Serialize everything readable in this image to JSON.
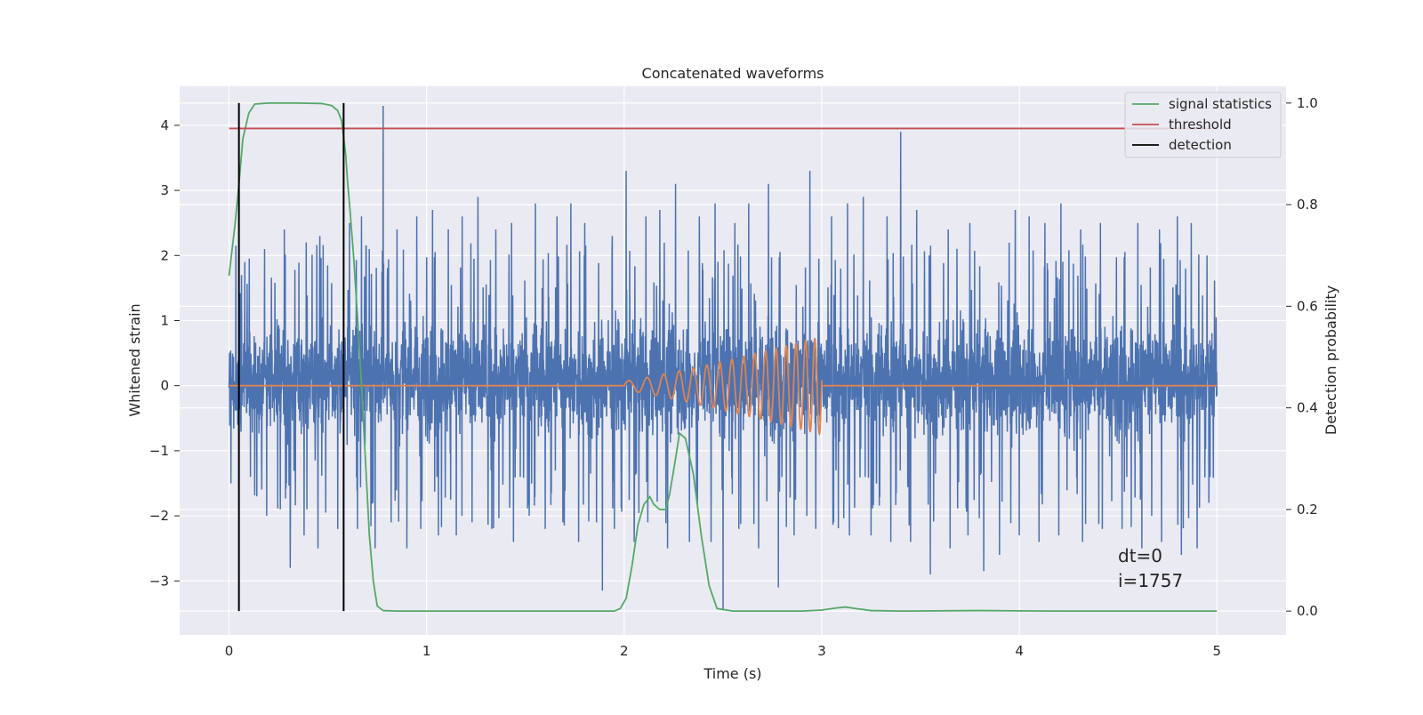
{
  "chart_data": {
    "type": "line",
    "title": "Concatenated waveforms",
    "xlabel": "Time (s)",
    "ylabel": "Whitened strain",
    "y2label": "Detection probability",
    "xlim": [
      -0.25,
      5.35
    ],
    "ylim": [
      -3.83,
      4.6
    ],
    "y2lim": [
      -0.047,
      1.033
    ],
    "x_ticks": [
      0,
      1,
      2,
      3,
      4,
      5
    ],
    "y_ticks": [
      -3,
      -2,
      -1,
      0,
      1,
      2,
      3,
      4
    ],
    "y2_ticks": [
      0.0,
      0.2,
      0.4,
      0.6,
      0.8,
      1.0
    ],
    "x_tick_labels": [
      "0",
      "1",
      "2",
      "3",
      "4",
      "5"
    ],
    "y_tick_labels": [
      "−3",
      "−2",
      "−1",
      "0",
      "1",
      "2",
      "3",
      "4"
    ],
    "y2_tick_labels": [
      "0.0",
      "0.2",
      "0.4",
      "0.6",
      "0.8",
      "1.0"
    ],
    "grid": true,
    "legend_position": "top-right",
    "annotations": [
      "dt=0",
      "i=1757"
    ],
    "series": [
      {
        "name": "",
        "axis": "left",
        "color": "#4c72b0",
        "kind": "noise",
        "x_range": [
          0,
          5
        ],
        "typical_range": [
          -1.0,
          1.2
        ],
        "peaks": [
          [
            0.01,
            2.35
          ],
          [
            0.05,
            2.4
          ],
          [
            0.08,
            1.9
          ],
          [
            0.14,
            2.0
          ],
          [
            0.18,
            2.1
          ],
          [
            0.28,
            2.4
          ],
          [
            0.31,
            3.1
          ],
          [
            0.39,
            2.2
          ],
          [
            0.46,
            2.3
          ],
          [
            0.61,
            2.5
          ],
          [
            0.67,
            2.6
          ],
          [
            0.71,
            2.1
          ],
          [
            0.78,
            4.3
          ],
          [
            0.85,
            2.4
          ],
          [
            0.95,
            2.6
          ],
          [
            1.03,
            2.7
          ],
          [
            1.11,
            2.4
          ],
          [
            1.18,
            2.6
          ],
          [
            1.26,
            2.9
          ],
          [
            1.35,
            2.4
          ],
          [
            1.43,
            2.5
          ],
          [
            1.55,
            2.8
          ],
          [
            1.66,
            2.6
          ],
          [
            1.73,
            2.8
          ],
          [
            1.8,
            2.5
          ],
          [
            1.86,
            2.6
          ],
          [
            1.94,
            2.3
          ],
          [
            2.01,
            3.3
          ],
          [
            2.11,
            2.6
          ],
          [
            2.18,
            2.7
          ],
          [
            2.26,
            3.1
          ],
          [
            2.38,
            2.6
          ],
          [
            2.46,
            2.8
          ],
          [
            2.56,
            2.5
          ],
          [
            2.63,
            2.8
          ],
          [
            2.73,
            3.1
          ],
          [
            2.86,
            3.35
          ],
          [
            2.94,
            3.3
          ],
          [
            3.05,
            2.6
          ],
          [
            3.13,
            2.8
          ],
          [
            3.21,
            2.9
          ],
          [
            3.33,
            2.6
          ],
          [
            3.4,
            3.9
          ],
          [
            3.48,
            2.7
          ],
          [
            3.55,
            2.6
          ],
          [
            3.64,
            2.4
          ],
          [
            3.75,
            2.5
          ],
          [
            3.82,
            3.65
          ],
          [
            3.9,
            2.5
          ],
          [
            3.98,
            2.7
          ],
          [
            4.05,
            2.6
          ],
          [
            4.13,
            2.5
          ],
          [
            4.21,
            2.8
          ],
          [
            4.31,
            2.4
          ],
          [
            4.41,
            2.5
          ],
          [
            4.52,
            2.6
          ],
          [
            4.6,
            2.5
          ],
          [
            4.71,
            2.4
          ],
          [
            4.8,
            2.6
          ],
          [
            4.87,
            2.5
          ],
          [
            4.95,
            2.0
          ]
        ],
        "troughs": [
          [
            0.01,
            -1.5
          ],
          [
            0.05,
            -1.6
          ],
          [
            0.14,
            -1.7
          ],
          [
            0.19,
            -2.0
          ],
          [
            0.26,
            -1.9
          ],
          [
            0.31,
            -2.8
          ],
          [
            0.38,
            -2.3
          ],
          [
            0.45,
            -2.5
          ],
          [
            0.55,
            -2.2
          ],
          [
            0.65,
            -2.2
          ],
          [
            0.74,
            -2.5
          ],
          [
            0.82,
            -2.1
          ],
          [
            0.9,
            -2.5
          ],
          [
            0.97,
            -2.2
          ],
          [
            1.06,
            -2.3
          ],
          [
            1.15,
            -2.3
          ],
          [
            1.23,
            -2.1
          ],
          [
            1.33,
            -2.2
          ],
          [
            1.44,
            -2.4
          ],
          [
            1.52,
            -2.0
          ],
          [
            1.6,
            -2.2
          ],
          [
            1.69,
            -2.1
          ],
          [
            1.77,
            -2.4
          ],
          [
            1.86,
            -2.1
          ],
          [
            1.89,
            -3.15
          ],
          [
            1.95,
            -2.2
          ],
          [
            2.05,
            -2.4
          ],
          [
            2.12,
            -2.1
          ],
          [
            2.22,
            -2.5
          ],
          [
            2.33,
            -2.4
          ],
          [
            2.44,
            -2.4
          ],
          [
            2.5,
            -3.45
          ],
          [
            2.58,
            -2.2
          ],
          [
            2.68,
            -2.5
          ],
          [
            2.78,
            -3.1
          ],
          [
            2.86,
            -2.3
          ],
          [
            2.97,
            -2.2
          ],
          [
            3.06,
            -2.1
          ],
          [
            3.14,
            -2.3
          ],
          [
            3.25,
            -2.3
          ],
          [
            3.35,
            -2.4
          ],
          [
            3.45,
            -2.4
          ],
          [
            3.55,
            -2.9
          ],
          [
            3.65,
            -2.5
          ],
          [
            3.74,
            -2.3
          ],
          [
            3.82,
            -2.85
          ],
          [
            3.9,
            -2.6
          ],
          [
            4.0,
            -2.3
          ],
          [
            4.1,
            -2.4
          ],
          [
            4.2,
            -2.3
          ],
          [
            4.32,
            -2.4
          ],
          [
            4.42,
            -2.2
          ],
          [
            4.52,
            -2.2
          ],
          [
            4.62,
            -2.5
          ],
          [
            4.72,
            -2.4
          ],
          [
            4.82,
            -2.6
          ],
          [
            4.9,
            -2.5
          ],
          [
            4.96,
            -1.8
          ]
        ]
      },
      {
        "name": "",
        "axis": "left",
        "color": "#dd8452",
        "kind": "chirp",
        "x_range": [
          0,
          5
        ],
        "chirp_start": 2.0,
        "chirp_end": 3.0,
        "start_amplitude": 0.07,
        "end_amplitude": 0.75,
        "start_frequency": 10,
        "end_frequency": 22
      },
      {
        "name": "signal statistics",
        "axis": "right",
        "color": "#55a868",
        "points": [
          [
            0.0,
            0.66
          ],
          [
            0.03,
            0.76
          ],
          [
            0.05,
            0.84
          ],
          [
            0.07,
            0.93
          ],
          [
            0.1,
            0.98
          ],
          [
            0.13,
            0.998
          ],
          [
            0.2,
            1.0
          ],
          [
            0.35,
            1.0
          ],
          [
            0.47,
            0.999
          ],
          [
            0.52,
            0.995
          ],
          [
            0.55,
            0.985
          ],
          [
            0.57,
            0.965
          ],
          [
            0.59,
            0.9
          ],
          [
            0.6,
            0.845
          ],
          [
            0.61,
            0.8
          ],
          [
            0.63,
            0.7
          ],
          [
            0.65,
            0.58
          ],
          [
            0.67,
            0.45
          ],
          [
            0.69,
            0.3
          ],
          [
            0.71,
            0.15
          ],
          [
            0.73,
            0.06
          ],
          [
            0.75,
            0.01
          ],
          [
            0.78,
            0.001
          ],
          [
            0.85,
            0.0
          ],
          [
            1.5,
            0.0
          ],
          [
            1.95,
            0.0
          ],
          [
            1.98,
            0.005
          ],
          [
            2.01,
            0.025
          ],
          [
            2.04,
            0.09
          ],
          [
            2.07,
            0.17
          ],
          [
            2.1,
            0.21
          ],
          [
            2.13,
            0.225
          ],
          [
            2.15,
            0.21
          ],
          [
            2.18,
            0.2
          ],
          [
            2.21,
            0.2
          ],
          [
            2.23,
            0.23
          ],
          [
            2.26,
            0.3
          ],
          [
            2.28,
            0.35
          ],
          [
            2.31,
            0.34
          ],
          [
            2.35,
            0.27
          ],
          [
            2.39,
            0.15
          ],
          [
            2.43,
            0.05
          ],
          [
            2.47,
            0.005
          ],
          [
            2.55,
            0.0
          ],
          [
            2.9,
            0.0
          ],
          [
            3.0,
            0.002
          ],
          [
            3.07,
            0.006
          ],
          [
            3.12,
            0.008
          ],
          [
            3.17,
            0.005
          ],
          [
            3.25,
            0.001
          ],
          [
            3.4,
            0.0
          ],
          [
            3.8,
            0.001
          ],
          [
            4.2,
            0.0
          ],
          [
            5.0,
            0.0
          ]
        ]
      },
      {
        "name": "threshold",
        "axis": "right",
        "color": "#c44e52",
        "value": 0.95,
        "x_range": [
          0,
          5
        ]
      },
      {
        "name": "detection",
        "axis": "right",
        "color": "#000000",
        "x_values": [
          0.05,
          0.58
        ],
        "y_range": [
          0,
          1.0
        ]
      }
    ]
  }
}
